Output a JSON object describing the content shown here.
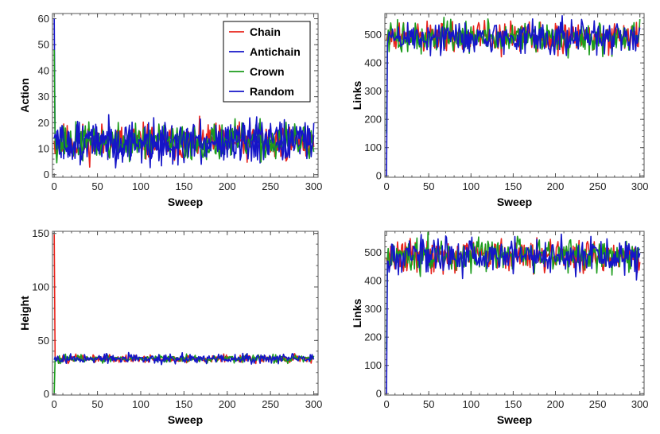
{
  "colors": {
    "Chain": "#e8241c",
    "Antichain": "#1515c8",
    "Crown": "#1c9c1c",
    "Random": "#1515c8"
  },
  "chart_data": [
    {
      "type": "line",
      "xlabel": "Sweep",
      "ylabel": "Action",
      "xlim": [
        -2,
        305
      ],
      "ylim": [
        -1,
        62
      ],
      "xticks": [
        0,
        50,
        100,
        150,
        200,
        250,
        300
      ],
      "yticks": [
        0,
        10,
        20,
        30,
        40,
        50,
        60
      ],
      "legend": {
        "placement": "top-right",
        "entries": [
          "Chain",
          "Antichain",
          "Crown",
          "Random"
        ]
      },
      "series": [
        {
          "name": "Chain",
          "start": [
            [
              0,
              13
            ]
          ],
          "mean": 12.5,
          "noise": 3.5,
          "seed": 11
        },
        {
          "name": "Antichain",
          "start": [
            [
              0,
              60
            ],
            [
              1,
              13
            ]
          ],
          "mean": 12.5,
          "noise": 3.8,
          "seed": 23
        },
        {
          "name": "Crown",
          "start": [
            [
              0,
              48
            ],
            [
              1,
              12
            ]
          ],
          "mean": 12.5,
          "noise": 3.5,
          "seed": 37
        },
        {
          "name": "Random",
          "start": [
            [
              0,
              14
            ]
          ],
          "mean": 12.5,
          "noise": 3.8,
          "seed": 51
        }
      ]
    },
    {
      "type": "line",
      "xlabel": "Sweep",
      "ylabel": "Links",
      "xlim": [
        -2,
        305
      ],
      "ylim": [
        -5,
        575
      ],
      "xticks": [
        0,
        50,
        100,
        150,
        200,
        250,
        300
      ],
      "yticks": [
        0,
        100,
        200,
        300,
        400,
        500
      ],
      "series": [
        {
          "start": [
            [
              0,
              480
            ]
          ],
          "mean": 490,
          "noise": 28,
          "color": "Chain",
          "seed": 61
        },
        {
          "start": [
            [
              0,
              150
            ],
            [
              1,
              480
            ]
          ],
          "mean": 490,
          "noise": 28,
          "color": "Crown",
          "seed": 73
        },
        {
          "start": [
            [
              0,
              0
            ],
            [
              1,
              470
            ]
          ],
          "mean": 490,
          "noise": 30,
          "color": "Antichain",
          "seed": 89
        }
      ]
    },
    {
      "type": "line",
      "xlabel": "Sweep",
      "ylabel": "Height",
      "xlim": [
        -2,
        305
      ],
      "ylim": [
        -1,
        152
      ],
      "xticks": [
        0,
        50,
        100,
        150,
        200,
        250,
        300
      ],
      "yticks": [
        0,
        50,
        100,
        150
      ],
      "series": [
        {
          "start": [
            [
              0,
              149
            ],
            [
              1,
              34
            ]
          ],
          "mean": 33,
          "noise": 1.8,
          "color": "Chain",
          "seed": 101
        },
        {
          "start": [
            [
              0,
              1
            ],
            [
              1,
              33
            ]
          ],
          "mean": 33,
          "noise": 1.8,
          "color": "Crown",
          "seed": 113
        },
        {
          "start": [
            [
              0,
              32
            ]
          ],
          "mean": 33,
          "noise": 2.2,
          "color": "Antichain",
          "seed": 127
        }
      ]
    },
    {
      "type": "line",
      "xlabel": "Sweep",
      "ylabel": "Links",
      "xlim": [
        -2,
        305
      ],
      "ylim": [
        -5,
        575
      ],
      "xticks": [
        0,
        50,
        100,
        150,
        200,
        250,
        300
      ],
      "yticks": [
        0,
        100,
        200,
        300,
        400,
        500
      ],
      "series": [
        {
          "start": [
            [
              0,
              480
            ]
          ],
          "mean": 490,
          "noise": 28,
          "color": "Chain",
          "seed": 131
        },
        {
          "start": [
            [
              0,
              150
            ],
            [
              1,
              480
            ]
          ],
          "mean": 490,
          "noise": 28,
          "color": "Crown",
          "seed": 149
        },
        {
          "start": [
            [
              0,
              0
            ],
            [
              1,
              470
            ]
          ],
          "mean": 490,
          "noise": 30,
          "color": "Antichain",
          "seed": 157
        }
      ]
    }
  ]
}
